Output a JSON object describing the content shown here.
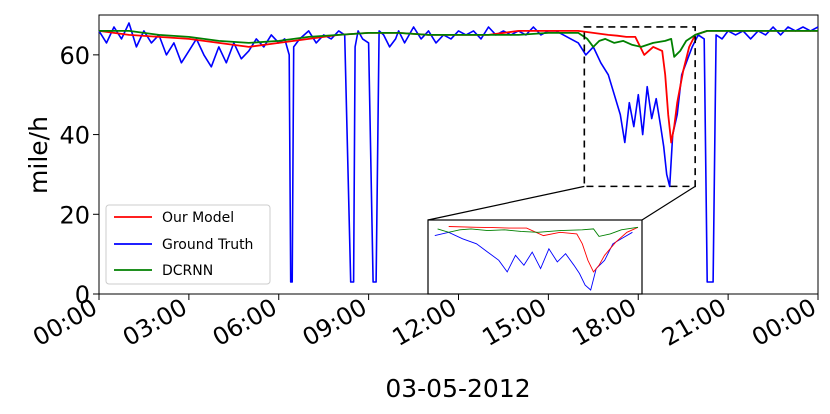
{
  "chart_data": {
    "type": "line",
    "xlabel": "03-05-2012",
    "ylabel": "mile/h",
    "xlim": [
      0,
      24
    ],
    "ylim": [
      0,
      70
    ],
    "x_ticks": [
      {
        "value": 0,
        "label": "00:00"
      },
      {
        "value": 3,
        "label": "03:00"
      },
      {
        "value": 6,
        "label": "06:00"
      },
      {
        "value": 9,
        "label": "09:00"
      },
      {
        "value": 12,
        "label": "12:00"
      },
      {
        "value": 15,
        "label": "15:00"
      },
      {
        "value": 18,
        "label": "18:00"
      },
      {
        "value": 21,
        "label": "21:00"
      },
      {
        "value": 24,
        "label": "00:00"
      }
    ],
    "y_ticks": [
      {
        "value": 0,
        "label": "0"
      },
      {
        "value": 20,
        "label": "20"
      },
      {
        "value": 40,
        "label": "40"
      },
      {
        "value": 60,
        "label": "60"
      }
    ],
    "grid": false,
    "legend_position": "lower-left",
    "zoom_box": {
      "x_range": [
        16.2,
        19.9
      ],
      "y_range": [
        27,
        67
      ]
    },
    "series": [
      {
        "name": "Our Model",
        "color": "#ff0000",
        "x": [
          0,
          1,
          2,
          3,
          4,
          5,
          6,
          7,
          8,
          9,
          10,
          11,
          12,
          13,
          14,
          15,
          16,
          16.5,
          17,
          17.3,
          17.6,
          17.9,
          18.2,
          18.5,
          18.8,
          18.9,
          19.0,
          19.1,
          19.2,
          19.3,
          19.5,
          19.7,
          19.9,
          20.3,
          21,
          22,
          23,
          24
        ],
        "y": [
          66,
          65,
          64.5,
          64,
          63,
          62,
          63,
          64,
          65,
          65.5,
          65.5,
          65,
          65,
          65,
          66,
          66,
          66,
          65.5,
          65,
          64.8,
          64.5,
          64.5,
          60,
          62,
          61,
          55,
          45,
          38,
          42,
          48,
          56,
          62,
          65,
          66,
          66,
          66,
          66,
          66
        ]
      },
      {
        "name": "Ground Truth",
        "color": "#0000ff",
        "x": [
          0,
          0.25,
          0.5,
          0.75,
          1,
          1.25,
          1.5,
          1.75,
          2,
          2.25,
          2.5,
          2.75,
          3,
          3.25,
          3.5,
          3.75,
          4,
          4.25,
          4.5,
          4.75,
          5,
          5.25,
          5.5,
          5.75,
          6,
          6.2,
          6.35,
          6.4,
          6.45,
          6.5,
          6.7,
          7,
          7.25,
          7.5,
          7.75,
          8,
          8.2,
          8.4,
          8.5,
          8.55,
          8.65,
          8.8,
          9,
          9.15,
          9.25,
          9.35,
          9.5,
          9.7,
          9.9,
          10,
          10.2,
          10.5,
          10.75,
          11,
          11.25,
          11.5,
          11.75,
          12,
          12.25,
          12.5,
          12.75,
          13,
          13.25,
          13.5,
          13.75,
          14,
          14.25,
          14.5,
          14.75,
          15,
          15.25,
          15.5,
          15.75,
          16,
          16.25,
          16.5,
          16.75,
          17,
          17.2,
          17.4,
          17.55,
          17.7,
          17.85,
          18,
          18.15,
          18.3,
          18.45,
          18.6,
          18.75,
          18.85,
          18.95,
          19.05,
          19.15,
          19.3,
          19.45,
          19.6,
          19.8,
          20,
          20.2,
          20.3,
          20.5,
          20.6,
          20.8,
          21,
          21.25,
          21.5,
          21.75,
          22,
          22.25,
          22.5,
          22.75,
          23,
          23.25,
          23.5,
          23.75,
          24
        ],
        "y": [
          66,
          63,
          67,
          64,
          68,
          62,
          66,
          63,
          65,
          60,
          63,
          58,
          61,
          64,
          60,
          57,
          62,
          58,
          63,
          59,
          61,
          64,
          62,
          65,
          63,
          64,
          60,
          3,
          3,
          62,
          64,
          66,
          63,
          65,
          64,
          66,
          65,
          3,
          3,
          62,
          66,
          64,
          63,
          3,
          3,
          66,
          65,
          62,
          64,
          66,
          63,
          67,
          64,
          66,
          63,
          65,
          64,
          66,
          65,
          66,
          64,
          67,
          65,
          66,
          65,
          66,
          65,
          67,
          65,
          66,
          66,
          65,
          64,
          63,
          60,
          62,
          58,
          55,
          50,
          45,
          38,
          48,
          42,
          50,
          40,
          52,
          44,
          49,
          42,
          37,
          30,
          27,
          40,
          45,
          55,
          58,
          62,
          65,
          64,
          3,
          3,
          65,
          64,
          66,
          65,
          66,
          64,
          66,
          65,
          67,
          65,
          67,
          66,
          67,
          66,
          67
        ]
      },
      {
        "name": "DCRNN",
        "color": "#008000",
        "x": [
          0,
          1,
          2,
          3,
          4,
          5,
          6,
          7,
          8,
          9,
          10,
          11,
          12,
          13,
          14,
          15,
          16,
          16.3,
          16.5,
          16.7,
          16.9,
          17.2,
          17.5,
          17.8,
          18.1,
          18.5,
          18.9,
          19.1,
          19.2,
          19.4,
          19.6,
          19.9,
          20.3,
          21,
          22,
          23,
          24
        ],
        "y": [
          66,
          66,
          65,
          64.5,
          63.5,
          63,
          63.5,
          64.5,
          65,
          65.5,
          65.5,
          65,
          65,
          65,
          65,
          65.5,
          65.5,
          64,
          62,
          63.5,
          64,
          63,
          63.5,
          62.5,
          62,
          63,
          63.5,
          64,
          59.5,
          61,
          63.5,
          65,
          66,
          66,
          66,
          66,
          66
        ]
      }
    ]
  }
}
